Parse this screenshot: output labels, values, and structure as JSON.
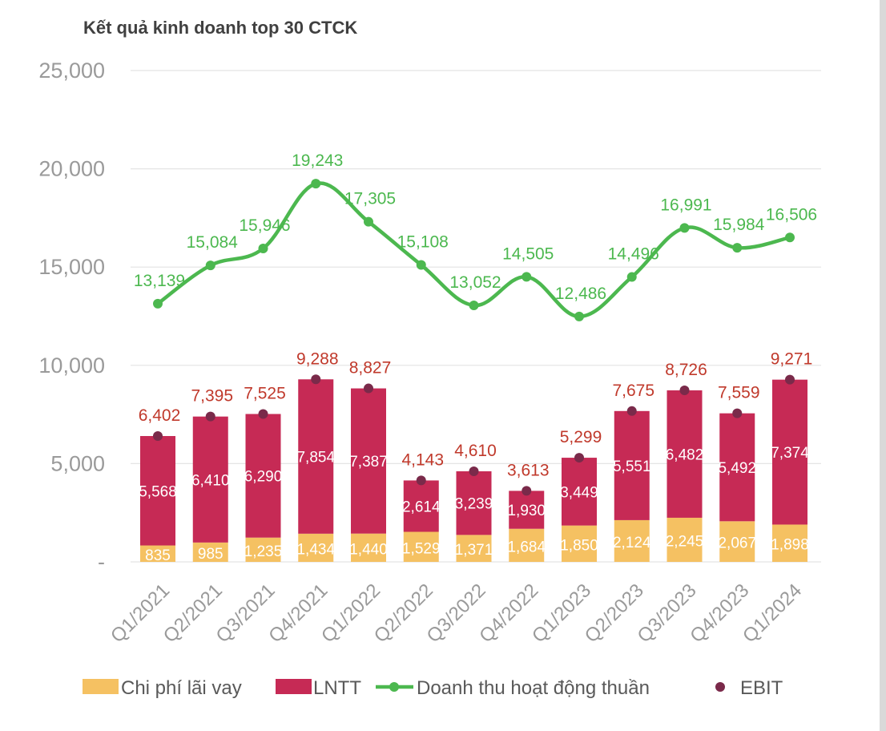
{
  "chart_data": {
    "type": "bar",
    "title": "Kết quả kinh doanh top 30 CTCK",
    "categories": [
      "Q1/2021",
      "Q2/2021",
      "Q3/2021",
      "Q4/2021",
      "Q1/2022",
      "Q2/2022",
      "Q3/2022",
      "Q4/2022",
      "Q1/2023",
      "Q2/2023",
      "Q3/2023",
      "Q4/2023",
      "Q1/2024"
    ],
    "y_ticks": [
      "25,000",
      "20,000",
      "15,000",
      "10,000",
      "5,000",
      "-"
    ],
    "y_tick_values": [
      25000,
      20000,
      15000,
      10000,
      5000,
      0
    ],
    "ylim": [
      0,
      25000
    ],
    "series": [
      {
        "name": "Chi phí lãi vay",
        "type": "stacked-bar",
        "color": "#f5c162",
        "values": [
          835,
          985,
          1235,
          1434,
          1440,
          1529,
          1371,
          1684,
          1850,
          2124,
          2245,
          2067,
          1898
        ],
        "labels": [
          "835",
          "985",
          "1,235",
          "1,434",
          "1,440",
          "1,529",
          "1,371",
          "1,684",
          "1,850",
          "2,124",
          "2,245",
          "2,067",
          "1,898"
        ]
      },
      {
        "name": "LNTT",
        "type": "stacked-bar",
        "color": "#c62a55",
        "values": [
          5568,
          6410,
          6290,
          7854,
          7387,
          2614,
          3239,
          1930,
          3449,
          5551,
          6482,
          5492,
          7374
        ],
        "labels": [
          "5,568",
          "6,410",
          "6,290",
          "7,854",
          "7,387",
          "2,614",
          "3,239",
          "1,930",
          "3,449",
          "5,551",
          "6,482",
          "5,492",
          "7,374"
        ]
      },
      {
        "name": "Doanh thu hoạt động thuần",
        "type": "line",
        "color": "#4cb84f",
        "values": [
          13139,
          15084,
          15946,
          19243,
          17305,
          15108,
          13052,
          14505,
          12486,
          14496,
          16991,
          15984,
          16506
        ],
        "labels": [
          "13,139",
          "15,084",
          "15,946",
          "19,243",
          "17,305",
          "15,108",
          "13,052",
          "14,505",
          "12,486",
          "14,496",
          "16,991",
          "15,984",
          "16,506"
        ]
      },
      {
        "name": "EBIT",
        "type": "scatter",
        "color": "#7a2a4a",
        "label_color": "#c0392b",
        "values": [
          6402,
          7395,
          7525,
          9288,
          8827,
          4143,
          4610,
          3613,
          5299,
          7675,
          8726,
          7559,
          9271
        ],
        "labels": [
          "6,402",
          "7,395",
          "7,525",
          "9,288",
          "8,827",
          "4,143",
          "4,610",
          "3,613",
          "5,299",
          "7,675",
          "8,726",
          "7,559",
          "9,271"
        ]
      }
    ],
    "legend": [
      {
        "label": "Chi phí lãi vay",
        "kind": "box",
        "color": "#f5c162"
      },
      {
        "label": "LNTT",
        "kind": "box",
        "color": "#c62a55"
      },
      {
        "label": "Doanh thu hoạt động thuần",
        "kind": "line",
        "color": "#4cb84f"
      },
      {
        "label": "EBIT",
        "kind": "dot",
        "color": "#7a2a4a"
      }
    ],
    "legend_position": "bottom",
    "grid": true
  }
}
